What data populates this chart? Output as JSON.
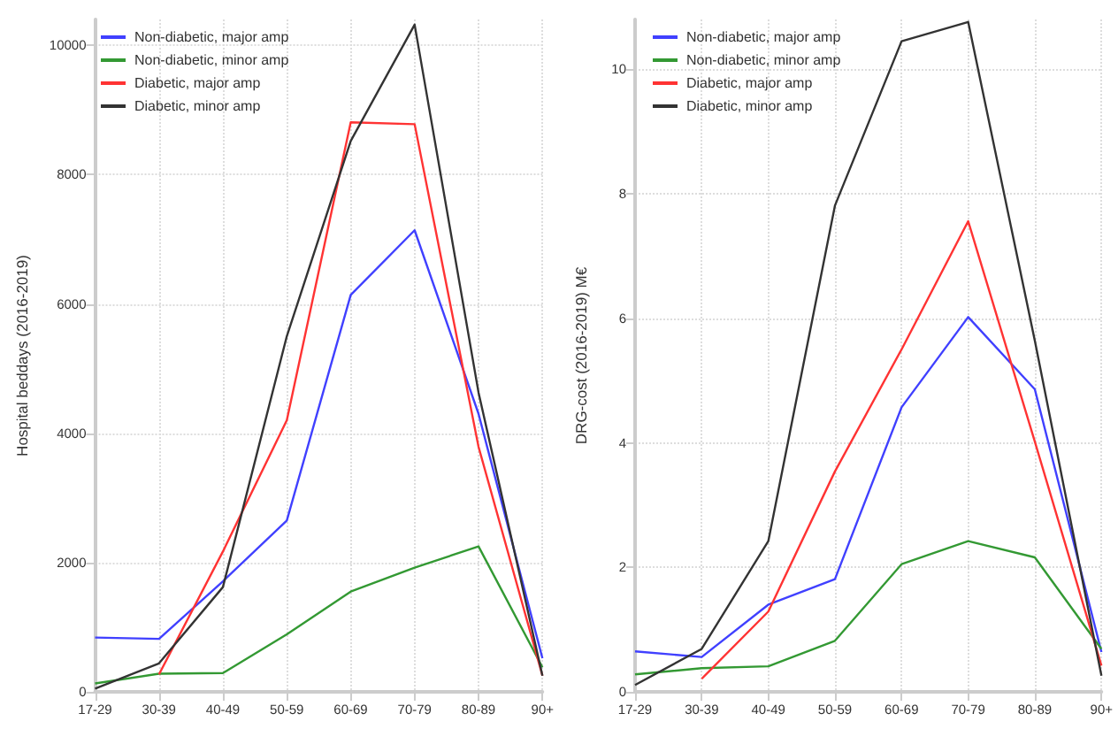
{
  "chart_data": [
    {
      "type": "line",
      "ylabel": "Hospital beddays (2016-2019)",
      "categories": [
        "17-29",
        "30-39",
        "40-49",
        "50-59",
        "60-69",
        "70-79",
        "80-89",
        "90+"
      ],
      "ylim": [
        0,
        10400
      ],
      "yticks": [
        0,
        2000,
        4000,
        6000,
        8000,
        10000
      ],
      "grid": true,
      "legend": "top left",
      "marker": "none",
      "line_style": "solid",
      "series": [
        {
          "name": "Non-diabetic, major amp",
          "color": "#4040ff",
          "values": [
            840,
            820,
            1710,
            2650,
            6140,
            7140,
            4300,
            520
          ]
        },
        {
          "name": "Non-diabetic, minor amp",
          "color": "#339933",
          "values": [
            130,
            280,
            290,
            890,
            1550,
            1920,
            2250,
            380
          ]
        },
        {
          "name": "Diabetic, major amp",
          "color": "#ff3333",
          "values": [
            null,
            270,
            2170,
            4200,
            8810,
            8780,
            3790,
            250
          ]
        },
        {
          "name": "Diabetic, minor amp",
          "color": "#333333",
          "values": [
            50,
            440,
            1620,
            5500,
            8520,
            10320,
            4630,
            250
          ]
        }
      ]
    },
    {
      "type": "line",
      "ylabel": "DRG-cost (2016-2019) M€",
      "categories": [
        "17-29",
        "30-39",
        "40-49",
        "50-59",
        "60-69",
        "70-79",
        "80-89",
        "90+"
      ],
      "ylim": [
        0,
        10.8
      ],
      "yticks": [
        0,
        2,
        4,
        6,
        8,
        10
      ],
      "grid": true,
      "legend": "top left",
      "marker": "none",
      "line_style": "solid",
      "series": [
        {
          "name": "Non-diabetic, major amp",
          "color": "#4040ff",
          "values": [
            0.65,
            0.56,
            1.4,
            1.81,
            4.57,
            6.02,
            4.86,
            0.64
          ]
        },
        {
          "name": "Non-diabetic, minor amp",
          "color": "#339933",
          "values": [
            0.28,
            0.38,
            0.41,
            0.82,
            2.05,
            2.42,
            2.16,
            0.69
          ]
        },
        {
          "name": "Diabetic, major amp",
          "color": "#ff3333",
          "values": [
            null,
            0.21,
            1.29,
            3.54,
            5.5,
            7.56,
            4.02,
            0.42
          ]
        },
        {
          "name": "Diabetic, minor amp",
          "color": "#333333",
          "values": [
            0.11,
            0.69,
            2.42,
            7.81,
            10.45,
            10.76,
            5.64,
            0.26
          ]
        }
      ]
    }
  ]
}
